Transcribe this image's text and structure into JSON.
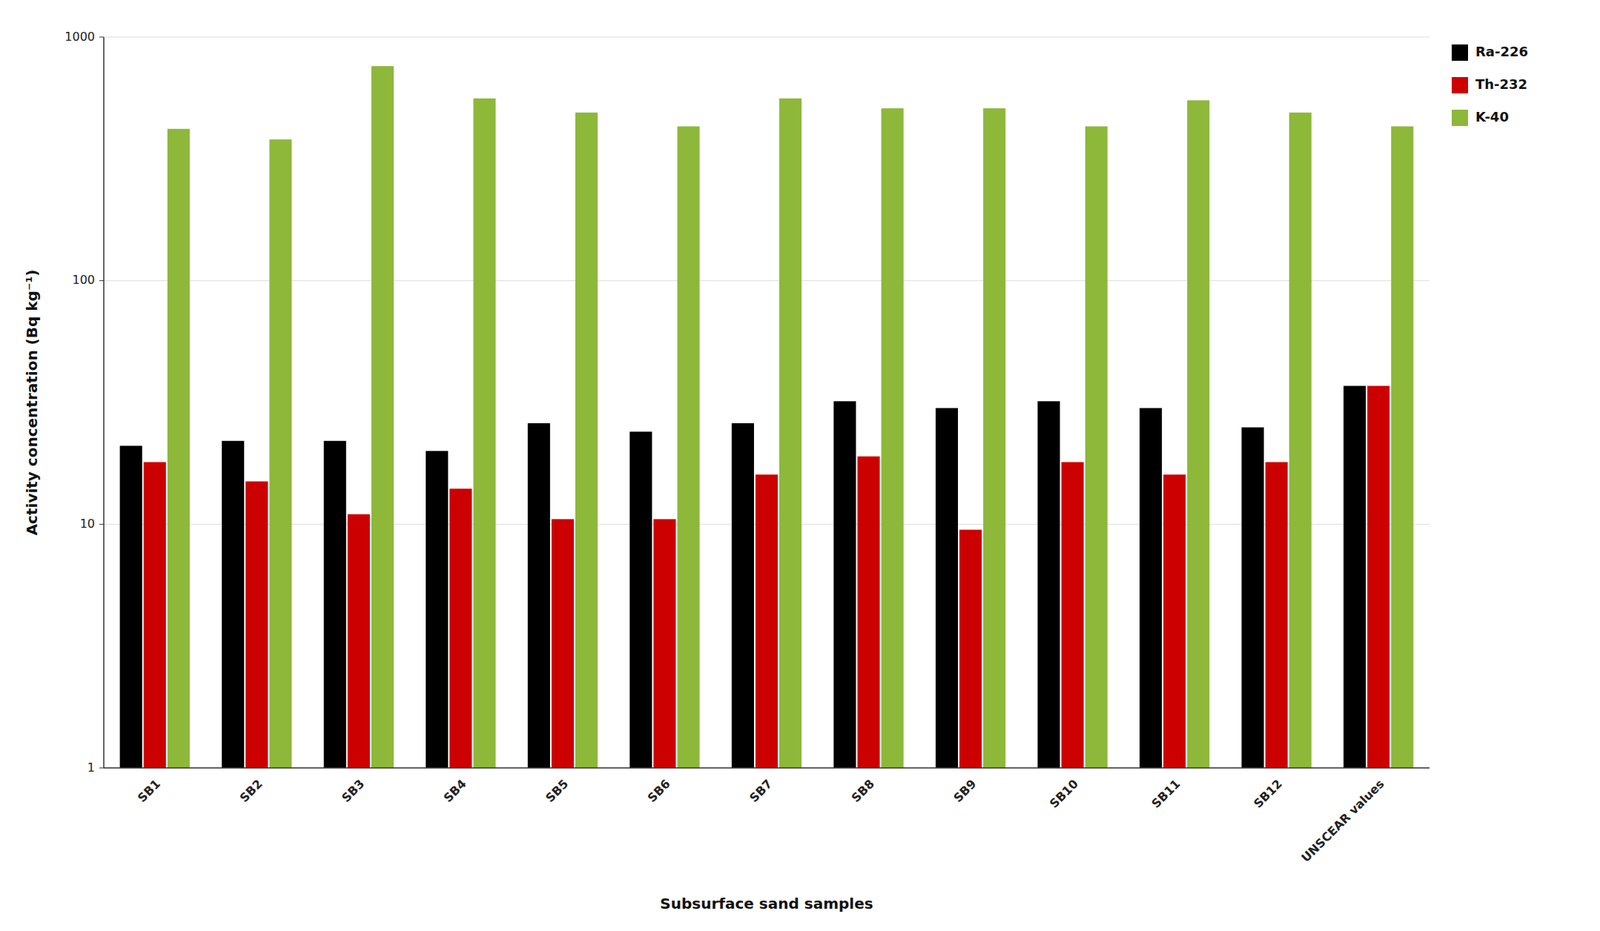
{
  "chart_data": {
    "type": "bar",
    "xlabel": "Subsurface sand samples",
    "ylabel": "Activity concentration (Bq kg⁻¹)",
    "categories": [
      "SB1",
      "SB2",
      "SB3",
      "SB4",
      "SB5",
      "SB6",
      "SB7",
      "SB8",
      "SB9",
      "SB10",
      "SB11",
      "SB12",
      "UNSCEAR values"
    ],
    "series": [
      {
        "name": "Ra-226",
        "color": "#000000",
        "values": [
          21,
          22,
          22,
          20,
          26,
          24,
          26,
          32,
          30,
          32,
          30,
          25,
          37
        ]
      },
      {
        "name": "Th-232",
        "color": "#cc0000",
        "values": [
          18,
          15,
          11,
          14,
          10.5,
          10.5,
          16,
          19,
          9.5,
          18,
          16,
          18,
          37
        ]
      },
      {
        "name": "K-40",
        "color": "#8db83a",
        "values": [
          420,
          380,
          760,
          560,
          490,
          430,
          560,
          510,
          510,
          430,
          550,
          490,
          430
        ]
      }
    ],
    "ylim": [
      1,
      1000
    ],
    "yticks": [
      1,
      10,
      100,
      1000
    ],
    "log": "y",
    "grid": true,
    "legend": "right"
  }
}
